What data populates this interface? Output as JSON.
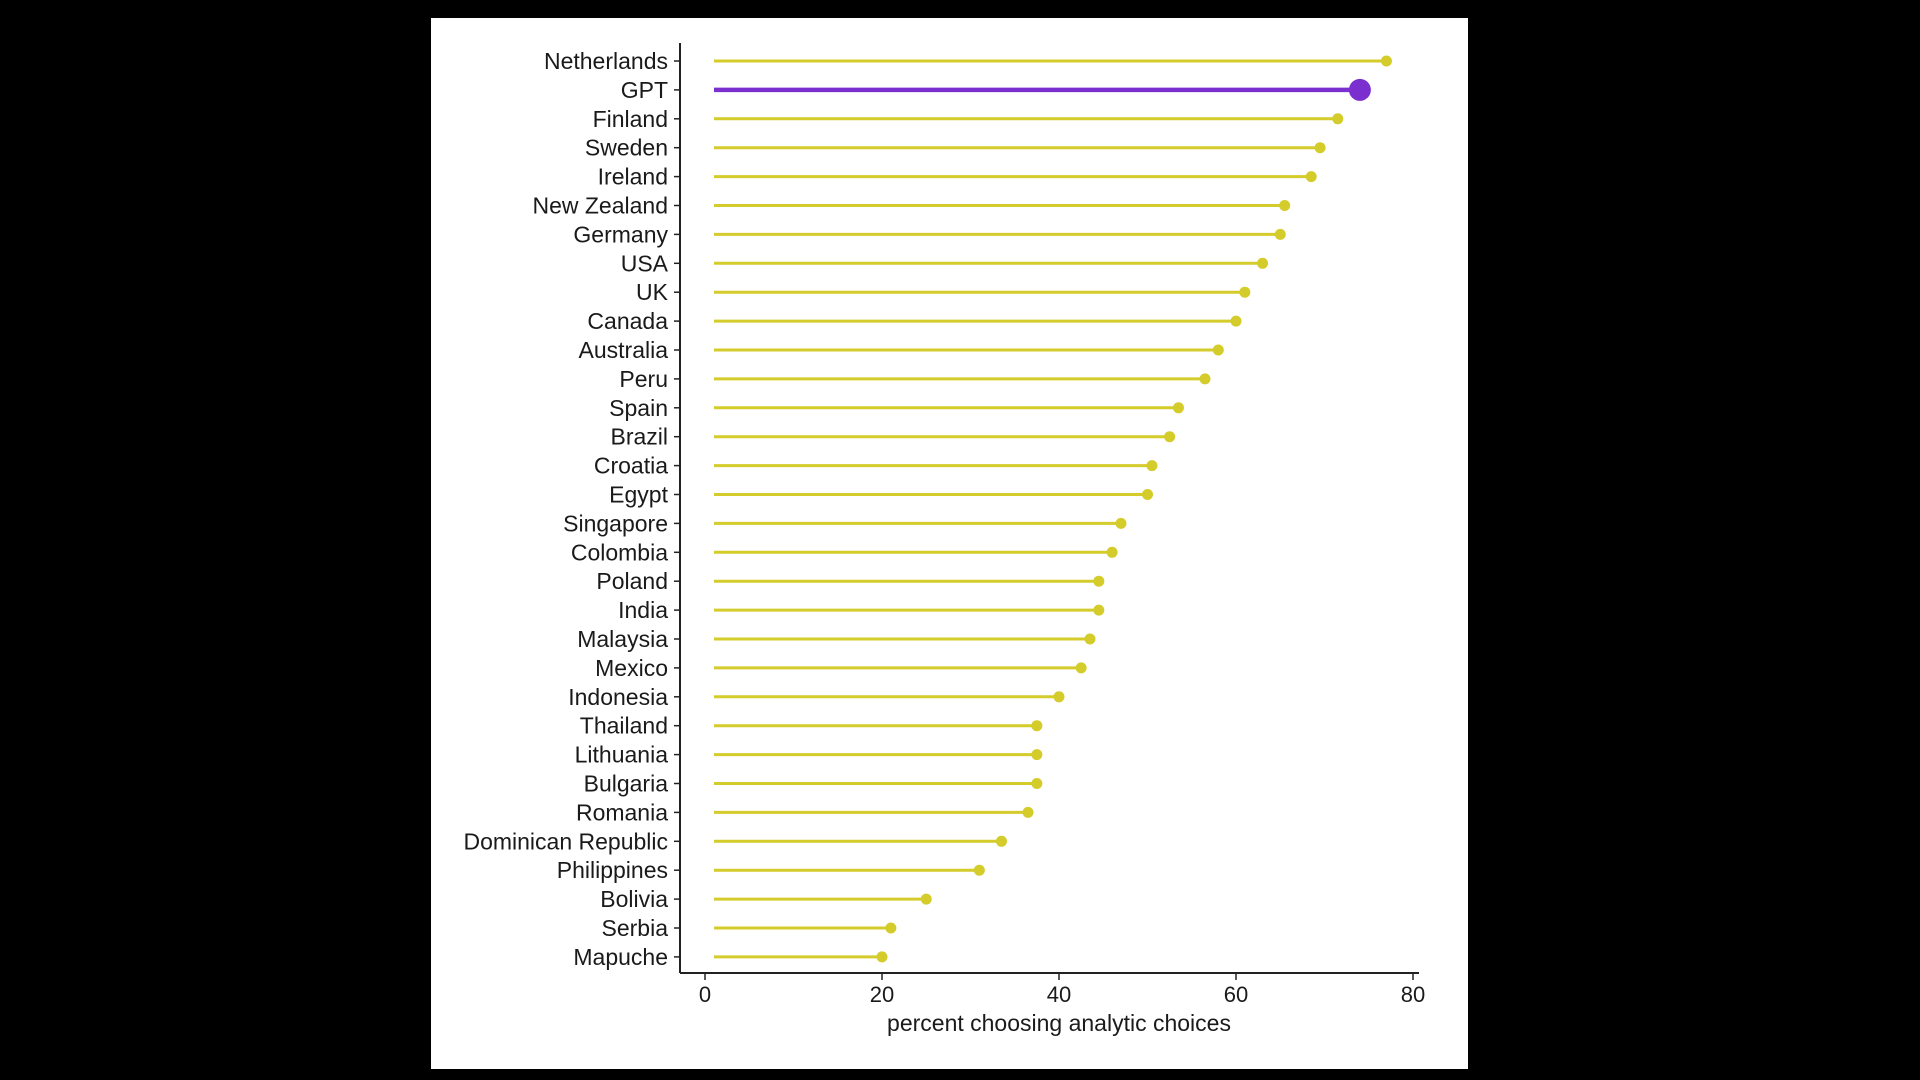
{
  "chart_data": {
    "type": "lollipop",
    "orientation": "horizontal",
    "xlabel": "percent choosing analytic choices",
    "ylabel": "",
    "xlim": [
      0,
      80
    ],
    "x_ticks": [
      0,
      20,
      40,
      60,
      80
    ],
    "grid": false,
    "colors": {
      "default": "#d4cc2a",
      "highlight": "#7b2fcf"
    },
    "categories": [
      {
        "label": "Netherlands",
        "value": 77,
        "highlight": false
      },
      {
        "label": "GPT",
        "value": 74,
        "highlight": true
      },
      {
        "label": "Finland",
        "value": 71.5,
        "highlight": false
      },
      {
        "label": "Sweden",
        "value": 69.5,
        "highlight": false
      },
      {
        "label": "Ireland",
        "value": 68.5,
        "highlight": false
      },
      {
        "label": "New Zealand",
        "value": 65.5,
        "highlight": false
      },
      {
        "label": "Germany",
        "value": 65,
        "highlight": false
      },
      {
        "label": "USA",
        "value": 63,
        "highlight": false
      },
      {
        "label": "UK",
        "value": 61,
        "highlight": false
      },
      {
        "label": "Canada",
        "value": 60,
        "highlight": false
      },
      {
        "label": "Australia",
        "value": 58,
        "highlight": false
      },
      {
        "label": "Peru",
        "value": 56.5,
        "highlight": false
      },
      {
        "label": "Spain",
        "value": 53.5,
        "highlight": false
      },
      {
        "label": "Brazil",
        "value": 52.5,
        "highlight": false
      },
      {
        "label": "Croatia",
        "value": 50.5,
        "highlight": false
      },
      {
        "label": "Egypt",
        "value": 50,
        "highlight": false
      },
      {
        "label": "Singapore",
        "value": 47,
        "highlight": false
      },
      {
        "label": "Colombia",
        "value": 46,
        "highlight": false
      },
      {
        "label": "Poland",
        "value": 44.5,
        "highlight": false
      },
      {
        "label": "India",
        "value": 44.5,
        "highlight": false
      },
      {
        "label": "Malaysia",
        "value": 43.5,
        "highlight": false
      },
      {
        "label": "Mexico",
        "value": 42.5,
        "highlight": false
      },
      {
        "label": "Indonesia",
        "value": 40,
        "highlight": false
      },
      {
        "label": "Thailand",
        "value": 37.5,
        "highlight": false
      },
      {
        "label": "Lithuania",
        "value": 37.5,
        "highlight": false
      },
      {
        "label": "Bulgaria",
        "value": 37.5,
        "highlight": false
      },
      {
        "label": "Romania",
        "value": 36.5,
        "highlight": false
      },
      {
        "label": "Dominican Republic",
        "value": 33.5,
        "highlight": false
      },
      {
        "label": "Philippines",
        "value": 31,
        "highlight": false
      },
      {
        "label": "Bolivia",
        "value": 25,
        "highlight": false
      },
      {
        "label": "Serbia",
        "value": 21,
        "highlight": false
      },
      {
        "label": "Mapuche",
        "value": 20,
        "highlight": false
      }
    ]
  }
}
